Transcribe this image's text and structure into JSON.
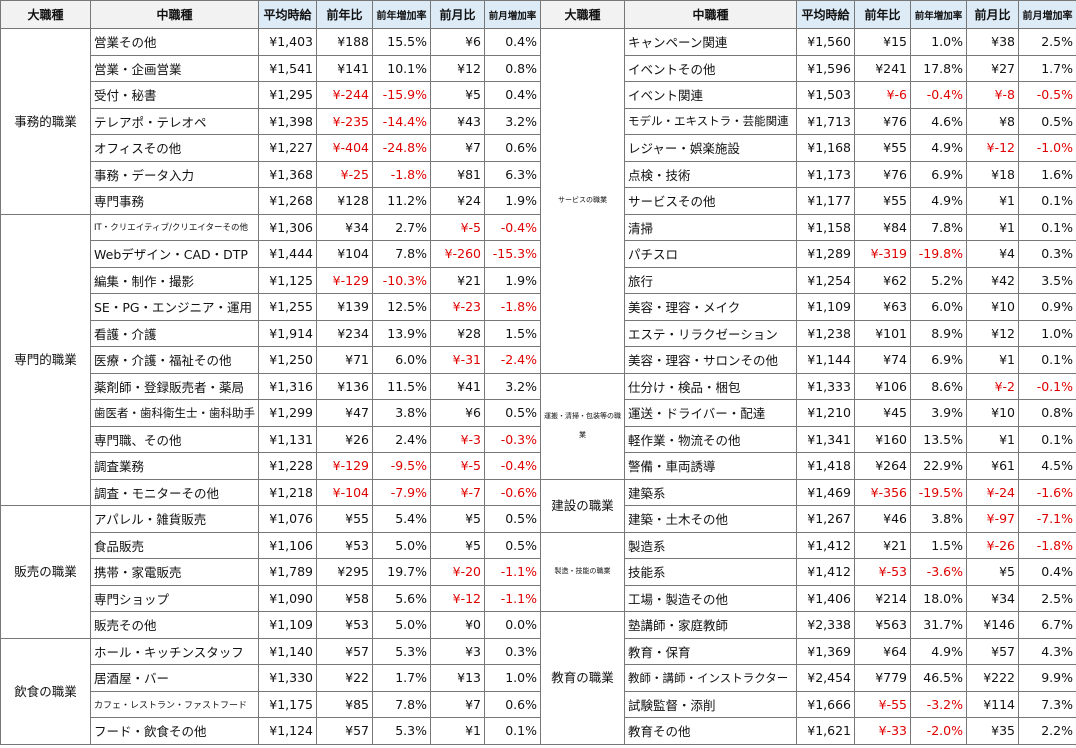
{
  "tables": [
    {
      "header": [
        "大職種",
        "中職種",
        "平均時給",
        "前年比",
        "前年増加率",
        "前月比",
        "前月増加率"
      ],
      "groups": [
        {
          "name": "事務的職業",
          "rows": [
            [
              "営業その他",
              "¥1,403",
              "¥188",
              "15.5%",
              "¥6",
              "0.4%"
            ],
            [
              "営業・企画営業",
              "¥1,541",
              "¥141",
              "10.1%",
              "¥12",
              "0.8%"
            ],
            [
              "受付・秘書",
              "¥1,295",
              "¥-244",
              "-15.9%",
              "¥5",
              "0.4%"
            ],
            [
              "テレアポ・テレオペ",
              "¥1,398",
              "¥-235",
              "-14.4%",
              "¥43",
              "3.2%"
            ],
            [
              "オフィスその他",
              "¥1,227",
              "¥-404",
              "-24.8%",
              "¥7",
              "0.6%"
            ],
            [
              "事務・データ入力",
              "¥1,368",
              "¥-25",
              "-1.8%",
              "¥81",
              "6.3%"
            ],
            [
              "専門事務",
              "¥1,268",
              "¥128",
              "11.2%",
              "¥24",
              "1.9%"
            ]
          ]
        },
        {
          "name": "専門的職業",
          "rows": [
            [
              "IT・クリエイティブ/クリエイターその他",
              "¥1,306",
              "¥34",
              "2.7%",
              "¥-5",
              "-0.4%"
            ],
            [
              "Webデザイン・CAD・DTP",
              "¥1,444",
              "¥104",
              "7.8%",
              "¥-260",
              "-15.3%"
            ],
            [
              "編集・制作・撮影",
              "¥1,125",
              "¥-129",
              "-10.3%",
              "¥21",
              "1.9%"
            ],
            [
              "SE・PG・エンジニア・運用",
              "¥1,255",
              "¥139",
              "12.5%",
              "¥-23",
              "-1.8%"
            ],
            [
              "看護・介護",
              "¥1,914",
              "¥234",
              "13.9%",
              "¥28",
              "1.5%"
            ],
            [
              "医療・介護・福祉その他",
              "¥1,250",
              "¥71",
              "6.0%",
              "¥-31",
              "-2.4%"
            ],
            [
              "薬剤師・登録販売者・薬局",
              "¥1,316",
              "¥136",
              "11.5%",
              "¥41",
              "3.2%"
            ],
            [
              "歯医者・歯科衛生士・歯科助手",
              "¥1,299",
              "¥47",
              "3.8%",
              "¥6",
              "0.5%"
            ],
            [
              "専門職、その他",
              "¥1,131",
              "¥26",
              "2.4%",
              "¥-3",
              "-0.3%"
            ],
            [
              "調査業務",
              "¥1,228",
              "¥-129",
              "-9.5%",
              "¥-5",
              "-0.4%"
            ],
            [
              "調査・モニターその他",
              "¥1,218",
              "¥-104",
              "-7.9%",
              "¥-7",
              "-0.6%"
            ]
          ]
        },
        {
          "name": "販売の職業",
          "rows": [
            [
              "アパレル・雑貨販売",
              "¥1,076",
              "¥55",
              "5.4%",
              "¥5",
              "0.5%"
            ],
            [
              "食品販売",
              "¥1,106",
              "¥53",
              "5.0%",
              "¥5",
              "0.5%"
            ],
            [
              "携帯・家電販売",
              "¥1,789",
              "¥295",
              "19.7%",
              "¥-20",
              "-1.1%"
            ],
            [
              "専門ショップ",
              "¥1,090",
              "¥58",
              "5.6%",
              "¥-12",
              "-1.1%"
            ],
            [
              "販売その他",
              "¥1,109",
              "¥53",
              "5.0%",
              "¥0",
              "0.0%"
            ]
          ]
        },
        {
          "name": "飲食の職業",
          "rows": [
            [
              "ホール・キッチンスタッフ",
              "¥1,140",
              "¥57",
              "5.3%",
              "¥3",
              "0.3%"
            ],
            [
              "居酒屋・バー",
              "¥1,330",
              "¥22",
              "1.7%",
              "¥13",
              "1.0%"
            ],
            [
              "カフェ・レストラン・ファストフード",
              "¥1,175",
              "¥85",
              "7.8%",
              "¥7",
              "0.6%"
            ],
            [
              "フード・飲食その他",
              "¥1,124",
              "¥57",
              "5.3%",
              "¥1",
              "0.1%"
            ]
          ]
        }
      ]
    },
    {
      "header": [
        "大職種",
        "中職種",
        "平均時給",
        "前年比",
        "前年増加率",
        "前月比",
        "前月増加率"
      ],
      "groups": [
        {
          "name": "サービスの職業",
          "rows": [
            [
              "キャンペーン関連",
              "¥1,560",
              "¥15",
              "1.0%",
              "¥38",
              "2.5%"
            ],
            [
              "イベントその他",
              "¥1,596",
              "¥241",
              "17.8%",
              "¥27",
              "1.7%"
            ],
            [
              "イベント関連",
              "¥1,503",
              "¥-6",
              "-0.4%",
              "¥-8",
              "-0.5%"
            ],
            [
              "モデル・エキストラ・芸能関連",
              "¥1,713",
              "¥76",
              "4.6%",
              "¥8",
              "0.5%"
            ],
            [
              "レジャー・娯楽施設",
              "¥1,168",
              "¥55",
              "4.9%",
              "¥-12",
              "-1.0%"
            ],
            [
              "点検・技術",
              "¥1,173",
              "¥76",
              "6.9%",
              "¥18",
              "1.6%"
            ],
            [
              "サービスその他",
              "¥1,177",
              "¥55",
              "4.9%",
              "¥1",
              "0.1%"
            ],
            [
              "清掃",
              "¥1,158",
              "¥84",
              "7.8%",
              "¥1",
              "0.1%"
            ],
            [
              "パチスロ",
              "¥1,289",
              "¥-319",
              "-19.8%",
              "¥4",
              "0.3%"
            ],
            [
              "旅行",
              "¥1,254",
              "¥62",
              "5.2%",
              "¥42",
              "3.5%"
            ],
            [
              "美容・理容・メイク",
              "¥1,109",
              "¥63",
              "6.0%",
              "¥10",
              "0.9%"
            ],
            [
              "エステ・リラクゼーション",
              "¥1,238",
              "¥101",
              "8.9%",
              "¥12",
              "1.0%"
            ],
            [
              "美容・理容・サロンその他",
              "¥1,144",
              "¥74",
              "6.9%",
              "¥1",
              "0.1%"
            ]
          ]
        },
        {
          "name": "運搬・清掃・包装等の職業",
          "rows": [
            [
              "仕分け・検品・梱包",
              "¥1,333",
              "¥106",
              "8.6%",
              "¥-2",
              "-0.1%"
            ],
            [
              "運送・ドライバー・配達",
              "¥1,210",
              "¥45",
              "3.9%",
              "¥10",
              "0.8%"
            ],
            [
              "軽作業・物流その他",
              "¥1,341",
              "¥160",
              "13.5%",
              "¥1",
              "0.1%"
            ],
            [
              "警備・車両誘導",
              "¥1,418",
              "¥264",
              "22.9%",
              "¥61",
              "4.5%"
            ]
          ]
        },
        {
          "name": "建設の職業",
          "rows": [
            [
              "建築系",
              "¥1,469",
              "¥-356",
              "-19.5%",
              "¥-24",
              "-1.6%"
            ],
            [
              "建築・土木その他",
              "¥1,267",
              "¥46",
              "3.8%",
              "¥-97",
              "-7.1%"
            ]
          ]
        },
        {
          "name": "製造・技能の職業",
          "rows": [
            [
              "製造系",
              "¥1,412",
              "¥21",
              "1.5%",
              "¥-26",
              "-1.8%"
            ],
            [
              "技能系",
              "¥1,412",
              "¥-53",
              "-3.6%",
              "¥5",
              "0.4%"
            ],
            [
              "工場・製造その他",
              "¥1,406",
              "¥214",
              "18.0%",
              "¥34",
              "2.5%"
            ]
          ]
        },
        {
          "name": "教育の職業",
          "rows": [
            [
              "塾講師・家庭教師",
              "¥2,338",
              "¥563",
              "31.7%",
              "¥146",
              "6.7%"
            ],
            [
              "教育・保育",
              "¥1,369",
              "¥64",
              "4.9%",
              "¥57",
              "4.3%"
            ],
            [
              "教師・講師・インストラクター",
              "¥2,454",
              "¥779",
              "46.5%",
              "¥222",
              "9.9%"
            ],
            [
              "試験監督・添削",
              "¥1,666",
              "¥-55",
              "-3.2%",
              "¥114",
              "7.3%"
            ],
            [
              "教育その他",
              "¥1,621",
              "¥-33",
              "-2.0%",
              "¥35",
              "2.2%"
            ]
          ]
        }
      ]
    }
  ]
}
